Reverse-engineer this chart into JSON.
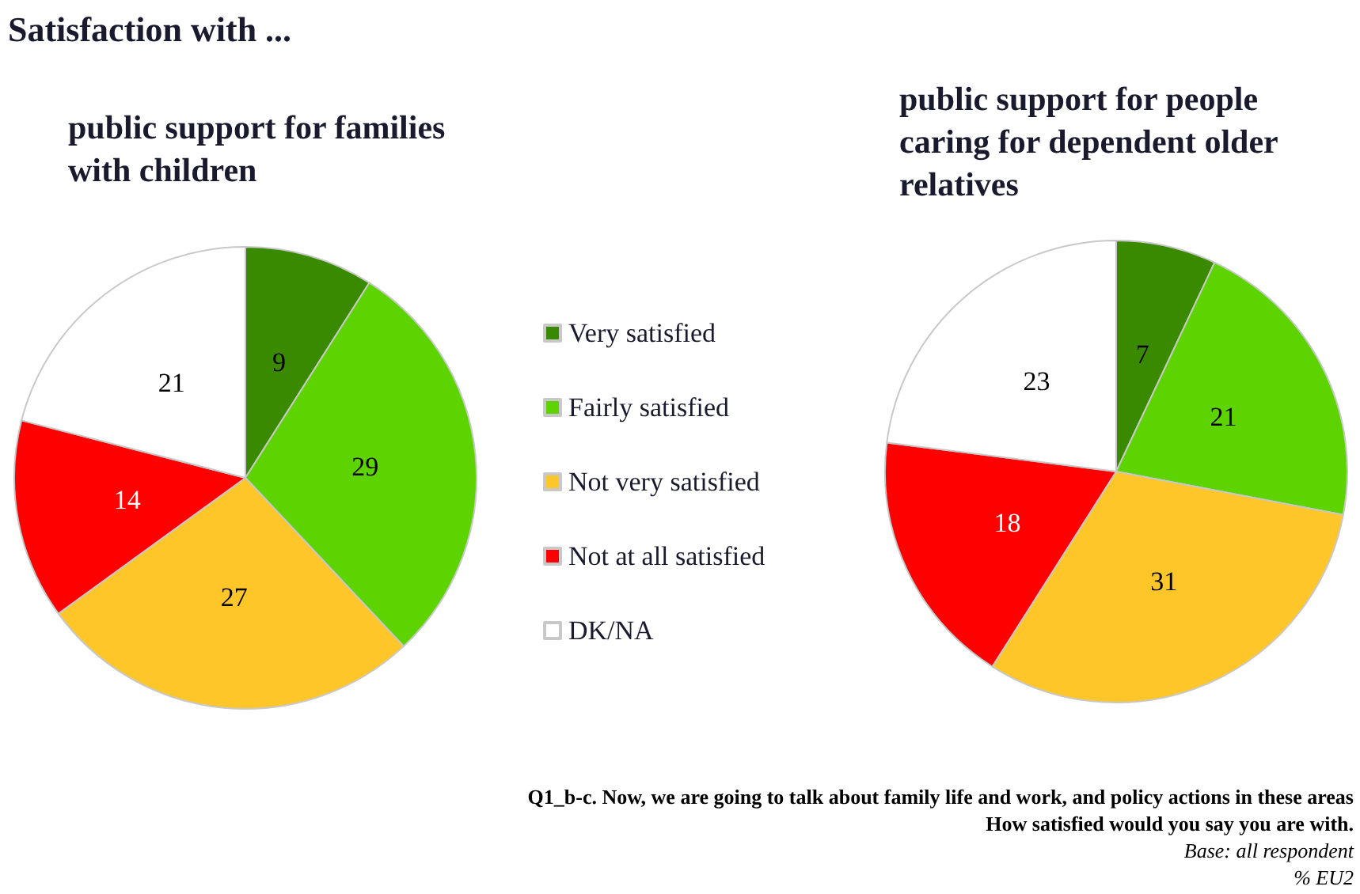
{
  "chart_data": [
    {
      "type": "pie",
      "title": "Satisfaction with ...",
      "subtitle": "public support for families with children",
      "categories": [
        "Very satisfied",
        "Fairly satisfied",
        "Not very satisfied",
        "Not at all satisfied",
        "DK/NA"
      ],
      "values": [
        9,
        29,
        27,
        14,
        21
      ],
      "colors": [
        "#3a8a00",
        "#5dd400",
        "#ffc62a",
        "#ff0000",
        "#ffffff"
      ],
      "data_labels": true,
      "legend": "right"
    },
    {
      "type": "pie",
      "title": "public support for people caring for dependent older relatives",
      "categories": [
        null,
        null,
        null,
        null,
        null
      ],
      "values": [
        7,
        21,
        31,
        18,
        23
      ],
      "colors": [
        "#3a8a00",
        "#5dd400",
        "#ffc62a",
        "#ff0000",
        "#ffffff"
      ],
      "data_labels": true,
      "legend": false,
      "annotations": [
        "Q1_b-c. Now, we are going to talk about family life and work, and policy actions in these areas",
        "How satisfied would you say you are with.",
        "Base: all respondent",
        "% EU2"
      ]
    }
  ]
}
